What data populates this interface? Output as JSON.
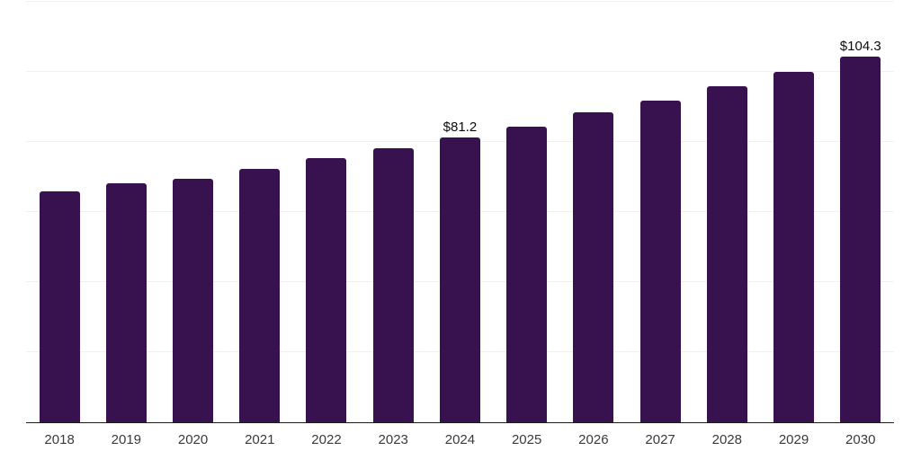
{
  "chart_data": {
    "type": "bar",
    "title": "",
    "xlabel": "",
    "ylabel": "",
    "categories": [
      "2018",
      "2019",
      "2020",
      "2021",
      "2022",
      "2023",
      "2024",
      "2025",
      "2026",
      "2027",
      "2028",
      "2029",
      "2030"
    ],
    "values": [
      66.0,
      68.3,
      69.6,
      72.4,
      75.3,
      78.2,
      81.2,
      84.4,
      88.4,
      91.9,
      96.0,
      99.9,
      104.3
    ],
    "data_labels": {
      "2024": "$81.2",
      "2030": "$104.3"
    },
    "ylim": [
      0,
      120
    ],
    "gridline_step": 20,
    "grid": "horizontal-only",
    "legend_position": "none",
    "y_tick_labels_visible": false,
    "bar_color": "#38124F",
    "axis_line_color": "#1c1c1c",
    "gridline_color": "#f1f1f1",
    "label_color": "#3a3a3a",
    "data_label_color": "#0b0b0b",
    "background_color": "#ffffff"
  }
}
